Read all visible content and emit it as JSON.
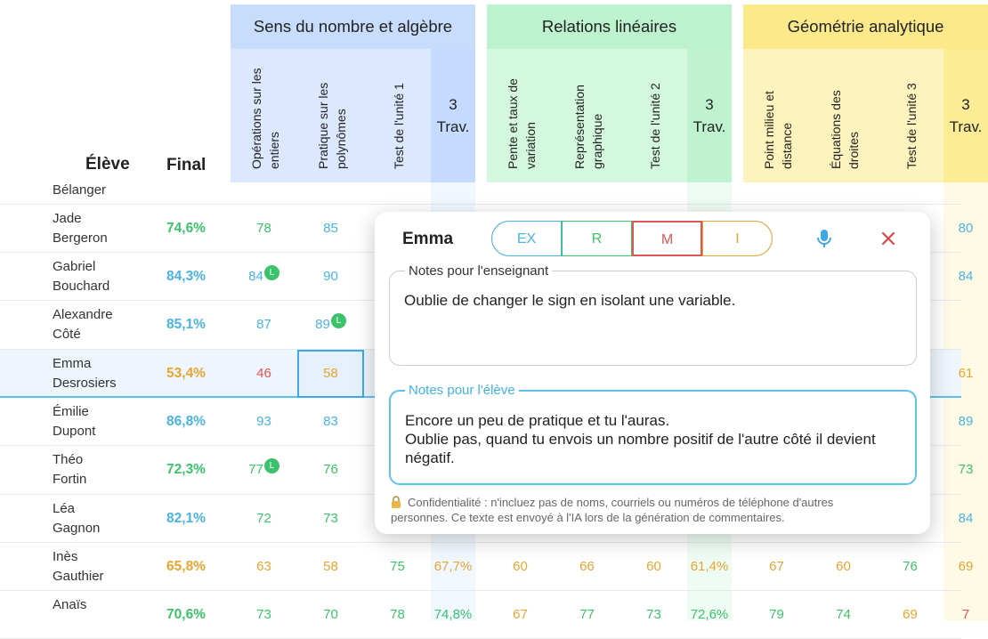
{
  "header": {
    "student_col": "Élève",
    "final_col": "Final"
  },
  "groups": [
    {
      "title": "Sens du nombre et algèbre",
      "columns": [
        "Opérations sur les entiers",
        "Pratique sur les polynômes",
        "Test de l'unité 1",
        "3 Trav."
      ]
    },
    {
      "title": "Relations linéaires",
      "columns": [
        "Pente et taux de variation",
        "Représentation graphique",
        "Test de l'unité 2",
        "3 Trav."
      ]
    },
    {
      "title": "Géométrie analytique",
      "columns": [
        "Point milieu et distance",
        "Équations des droites",
        "Test de l'unité 3",
        "3 Trav."
      ]
    }
  ],
  "rows": [
    {
      "last": "Bélanger",
      "scores": [
        null,
        null,
        null,
        null,
        null,
        null,
        null,
        null,
        null,
        null,
        null,
        null
      ]
    },
    {
      "first": "Jade",
      "last": "Bergeron",
      "final": "74,6%",
      "scores": [
        "78",
        "85",
        null,
        null,
        null,
        null,
        null,
        null,
        null,
        null,
        null,
        "80"
      ]
    },
    {
      "first": "Gabriel",
      "last": "Bouchard",
      "final": "84,3%",
      "scores": [
        {
          "v": "84",
          "badge": "L"
        },
        "90",
        null,
        null,
        null,
        null,
        null,
        null,
        null,
        null,
        null,
        "84"
      ]
    },
    {
      "first": "Alexandre",
      "last": "Côté",
      "final": "85,1%",
      "scores": [
        "87",
        {
          "v": "89",
          "badge": "L"
        },
        null,
        null,
        null,
        null,
        null,
        null,
        null,
        null,
        null,
        null
      ]
    },
    {
      "first": "Emma",
      "last": "Desrosiers",
      "final": "53,4%",
      "selected": true,
      "selected_col": 1,
      "scores": [
        "46",
        "58",
        null,
        null,
        null,
        null,
        null,
        null,
        null,
        null,
        null,
        "61"
      ]
    },
    {
      "first": "Émilie",
      "last": "Dupont",
      "final": "86,8%",
      "scores": [
        "93",
        "83",
        null,
        null,
        null,
        null,
        null,
        null,
        null,
        null,
        null,
        "89"
      ]
    },
    {
      "first": "Théo",
      "last": "Fortin",
      "final": "72,3%",
      "scores": [
        {
          "v": "77",
          "badge": "L"
        },
        "76",
        null,
        null,
        null,
        null,
        null,
        null,
        null,
        null,
        null,
        "73"
      ]
    },
    {
      "first": "Léa",
      "last": "Gagnon",
      "final": "82,1%",
      "scores": [
        "72",
        "73",
        null,
        null,
        null,
        null,
        null,
        null,
        null,
        null,
        null,
        "84"
      ]
    },
    {
      "first": "Inès",
      "last": "Gauthier",
      "final": "65,8%",
      "scores": [
        "63",
        "58",
        "75",
        "67,7%",
        "60",
        "66",
        "60",
        "61,4%",
        "67",
        "60",
        "76",
        "69"
      ]
    },
    {
      "first": "Anaïs",
      "final": "70,6%",
      "scores": [
        "73",
        "70",
        "78",
        "74,8%",
        "67",
        "77",
        "73",
        "72,6%",
        "79",
        "74",
        "69",
        "7"
      ]
    }
  ],
  "popup": {
    "name": "Emma",
    "tabs": [
      "EX",
      "R",
      "M",
      "I"
    ],
    "active_tab": 2,
    "teacher_label": "Notes pour l'enseignant",
    "teacher_note": "Oublie de changer le sign en isolant une variable.",
    "student_label": "Notes pour l'élève",
    "student_note": "Encore un peu de pratique et tu l'auras.\nOublie pas, quand tu envois un nombre positif de l'autre côté il devient négatif.",
    "privacy": "Confidentialité : n'incluez pas de noms, courriels ou numéros de téléphone d'autres personnes. Ce texte est envoyé à l'IA lors de la génération de commentaires."
  }
}
